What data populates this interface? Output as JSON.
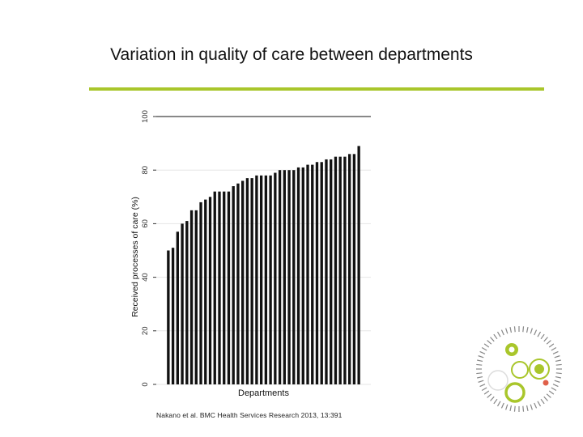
{
  "slide": {
    "title": "Variation in quality of care between departments",
    "citation": "Nakano et al. BMC Health Services Research 2013, 13:391"
  },
  "colors": {
    "accent": "#a9c62b",
    "bar": "#111111",
    "gridline": "#e6e6e6",
    "logo_dot": "#e0604a"
  },
  "logo": {
    "icon": "circles-logo-icon"
  },
  "chart_data": {
    "type": "bar",
    "title": "",
    "xlabel": "Departments",
    "ylabel": "Received processes of care (%)",
    "ylim": [
      0,
      100
    ],
    "yticks": [
      0,
      20,
      40,
      60,
      80,
      100
    ],
    "grid": true,
    "legend": "none",
    "values": [
      50,
      51,
      57,
      60,
      61,
      65,
      65,
      68,
      69,
      70,
      72,
      72,
      72,
      72,
      74,
      75,
      76,
      77,
      77,
      78,
      78,
      78,
      78,
      79,
      80,
      80,
      80,
      80,
      81,
      81,
      82,
      82,
      83,
      83,
      84,
      84,
      85,
      85,
      85,
      86,
      86,
      89
    ]
  }
}
